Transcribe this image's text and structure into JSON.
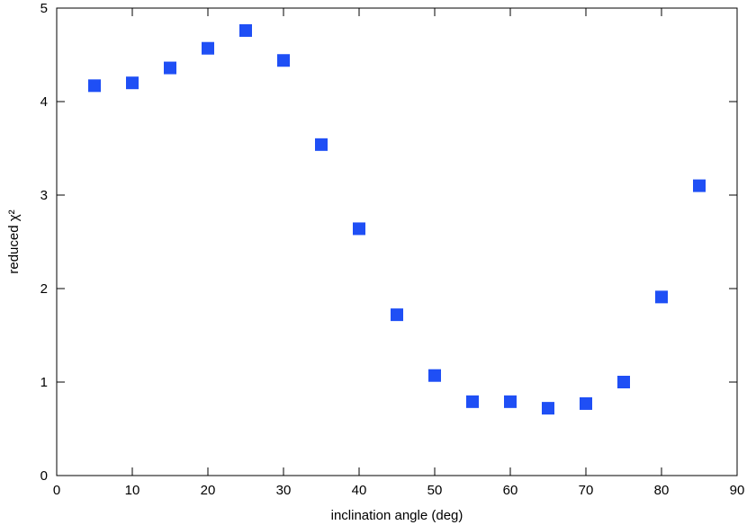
{
  "chart_data": {
    "type": "scatter",
    "xlabel": "inclination angle (deg)",
    "ylabel": "reduced χ²",
    "xlim": [
      0,
      90
    ],
    "ylim": [
      0,
      5
    ],
    "xticks": [
      0,
      10,
      20,
      30,
      40,
      50,
      60,
      70,
      80,
      90
    ],
    "yticks": [
      0,
      1,
      2,
      3,
      4,
      5
    ],
    "grid": false,
    "marker": "square",
    "marker_color": "#1f4ff5",
    "series": [
      {
        "x": [
          5,
          10,
          15,
          20,
          25,
          30,
          35,
          40,
          45,
          50,
          55,
          60,
          65,
          70,
          75,
          80,
          85
        ],
        "y": [
          4.17,
          4.2,
          4.36,
          4.57,
          4.76,
          4.44,
          3.54,
          2.64,
          1.72,
          1.07,
          0.79,
          0.79,
          0.72,
          0.77,
          1.0,
          1.91,
          3.1
        ]
      }
    ]
  }
}
